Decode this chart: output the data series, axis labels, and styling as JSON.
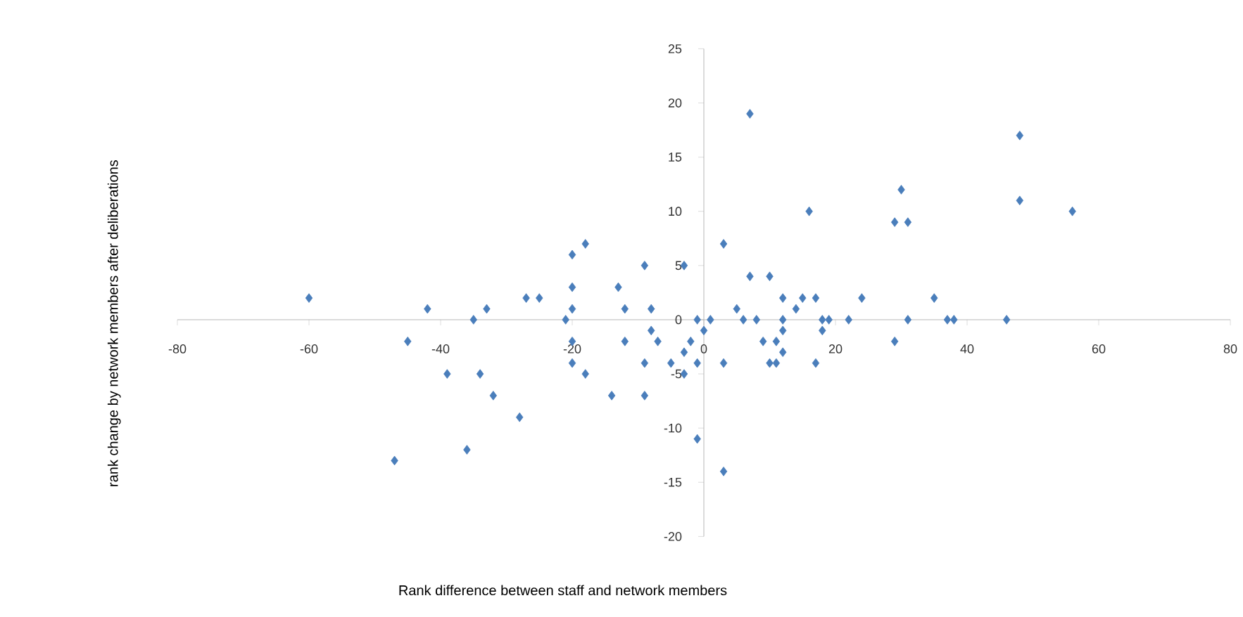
{
  "chart_data": {
    "type": "scatter",
    "xlabel": "Rank difference between staff and network members",
    "ylabel": "rank change by network members after deliberations",
    "xlim": [
      -80,
      80
    ],
    "ylim": [
      -20,
      25
    ],
    "xticks": [
      -80,
      -60,
      -40,
      -20,
      0,
      20,
      40,
      60,
      80
    ],
    "yticks": [
      -20,
      -15,
      -10,
      -5,
      0,
      5,
      10,
      15,
      20,
      25
    ],
    "marker": "diamond",
    "grid": false,
    "series": [
      {
        "color": "#4a7ebb",
        "x": [
          -60,
          -42,
          -45,
          -39,
          -35,
          -33,
          -34,
          -32,
          -36,
          -47,
          -28,
          -27,
          -25,
          -21,
          -20,
          -18,
          -20,
          -20,
          -20,
          -20,
          -18,
          -13,
          -12,
          -12,
          -14,
          -9,
          -8,
          -8,
          -7,
          -9,
          -9,
          -5,
          -3,
          -1,
          1,
          0,
          -2,
          -3,
          -3,
          -1,
          -1,
          3,
          3,
          3,
          7,
          7,
          10,
          16,
          5,
          6,
          8,
          9,
          11,
          10,
          11,
          12,
          12,
          12,
          12,
          14,
          15,
          17,
          18,
          19,
          18,
          17,
          22,
          24,
          29,
          30,
          31,
          29,
          31,
          35,
          37,
          38,
          48,
          48,
          56,
          46
        ],
        "values": [
          2,
          1,
          -2,
          -5,
          0,
          1,
          -5,
          -7,
          -12,
          -13,
          -9,
          2,
          2,
          0,
          6,
          7,
          3,
          1,
          -2,
          -4,
          -5,
          3,
          1,
          -2,
          -7,
          5,
          1,
          -1,
          -2,
          -4,
          -7,
          -4,
          5,
          0,
          0,
          -1,
          -2,
          -3,
          -5,
          -4,
          -11,
          7,
          -4,
          -14,
          19,
          4,
          4,
          10,
          1,
          0,
          0,
          -2,
          -2,
          -4,
          -4,
          2,
          0,
          -1,
          -3,
          1,
          2,
          2,
          0,
          0,
          -1,
          -4,
          0,
          2,
          9,
          12,
          9,
          -2,
          0,
          2,
          0,
          0,
          17,
          11,
          10,
          0
        ]
      }
    ]
  }
}
